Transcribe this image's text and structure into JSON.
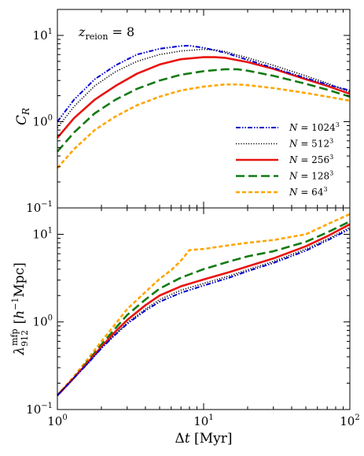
{
  "chart_data": [
    {
      "type": "line",
      "panel": "top",
      "annotation": "z_reion = 8",
      "ylabel": "C_R",
      "xscale": "log",
      "yscale": "log",
      "xlim": [
        1,
        100
      ],
      "ylim": [
        0.1,
        20
      ],
      "xticklabels": [],
      "yticks": [
        {
          "value": 0.1,
          "label": "10^-1"
        },
        {
          "value": 1,
          "label": "10^0"
        },
        {
          "value": 10,
          "label": "10^1"
        }
      ],
      "legend_position": "lower-right",
      "series": [
        {
          "name": "N = 1024^3",
          "color": "#0000cc",
          "style": "dashdotdot",
          "x": [
            1,
            1.3,
            1.8,
            2.5,
            3.5,
            5,
            7,
            8,
            10,
            14,
            20,
            30,
            50,
            70,
            100
          ],
          "y": [
            1.0,
            1.8,
            3.1,
            4.5,
            6.0,
            7.0,
            7.55,
            7.6,
            7.2,
            6.3,
            5.2,
            4.2,
            3.2,
            2.7,
            2.3
          ]
        },
        {
          "name": "N = 512^3",
          "color": "#000000",
          "style": "dotted",
          "x": [
            1,
            1.3,
            1.8,
            2.5,
            3.5,
            5,
            7,
            10,
            12,
            14,
            20,
            30,
            50,
            70,
            100
          ],
          "y": [
            0.85,
            1.5,
            2.6,
            3.8,
            5.0,
            6.0,
            6.6,
            6.9,
            6.8,
            6.5,
            5.5,
            4.5,
            3.4,
            2.8,
            2.2
          ]
        },
        {
          "name": "N = 256^3",
          "color": "#e8140f",
          "style": "solid",
          "x": [
            1,
            1.3,
            1.8,
            2.5,
            3.5,
            5,
            7,
            10,
            12,
            14,
            20,
            30,
            50,
            70,
            100
          ],
          "y": [
            0.65,
            1.1,
            1.8,
            2.6,
            3.6,
            4.6,
            5.3,
            5.6,
            5.6,
            5.5,
            4.9,
            4.1,
            3.1,
            2.6,
            2.1
          ]
        },
        {
          "name": "N = 128^3",
          "color": "#137a13",
          "style": "dashed",
          "x": [
            1,
            1.3,
            1.8,
            2.5,
            3.5,
            5,
            7,
            10,
            14,
            17,
            20,
            30,
            50,
            70,
            100
          ],
          "y": [
            0.45,
            0.75,
            1.25,
            1.8,
            2.4,
            3.0,
            3.5,
            3.85,
            4.05,
            4.05,
            3.9,
            3.4,
            2.75,
            2.35,
            1.95
          ]
        },
        {
          "name": "N = 64^3",
          "color": "#ffa500",
          "style": "short-dashed",
          "x": [
            1,
            1.3,
            1.8,
            2.5,
            3.5,
            5,
            7,
            10,
            14,
            17,
            20,
            30,
            50,
            70,
            100
          ],
          "y": [
            0.29,
            0.48,
            0.8,
            1.15,
            1.55,
            1.95,
            2.3,
            2.55,
            2.7,
            2.7,
            2.65,
            2.45,
            2.15,
            1.95,
            1.75
          ]
        }
      ]
    },
    {
      "type": "line",
      "panel": "bottom",
      "xlabel": "Δt [Myr]",
      "ylabel": "λ_912^mfp [h^-1 Mpc]",
      "xscale": "log",
      "yscale": "log",
      "xlim": [
        1,
        100
      ],
      "ylim": [
        0.1,
        20
      ],
      "xticks": [
        {
          "value": 1,
          "label": "10^0"
        },
        {
          "value": 10,
          "label": "10^1"
        },
        {
          "value": 100,
          "label": "10^2"
        }
      ],
      "yticks": [
        {
          "value": 0.1,
          "label": "10^-1"
        },
        {
          "value": 1,
          "label": "10^0"
        },
        {
          "value": 10,
          "label": "10^1"
        }
      ],
      "series": [
        {
          "name": "N = 1024^3",
          "color": "#0000cc",
          "style": "dashdotdot",
          "x": [
            1,
            1.3,
            1.6,
            2,
            2.5,
            3,
            4,
            5,
            7,
            10,
            15,
            20,
            30,
            50,
            70,
            100
          ],
          "y": [
            0.145,
            0.23,
            0.33,
            0.5,
            0.72,
            0.95,
            1.35,
            1.7,
            2.15,
            2.6,
            3.2,
            3.8,
            4.7,
            6.5,
            8.5,
            11.5
          ]
        },
        {
          "name": "N = 512^3",
          "color": "#000000",
          "style": "dotted",
          "x": [
            1,
            1.3,
            1.6,
            2,
            2.5,
            3,
            4,
            5,
            7,
            10,
            15,
            20,
            30,
            50,
            70,
            100
          ],
          "y": [
            0.145,
            0.23,
            0.33,
            0.5,
            0.73,
            0.98,
            1.4,
            1.8,
            2.3,
            2.75,
            3.35,
            3.95,
            4.9,
            6.8,
            8.8,
            12.0
          ]
        },
        {
          "name": "N = 256^3",
          "color": "#e8140f",
          "style": "solid",
          "x": [
            1,
            1.3,
            1.6,
            2,
            2.5,
            3,
            4,
            5,
            7,
            10,
            15,
            20,
            30,
            50,
            70,
            100
          ],
          "y": [
            0.145,
            0.23,
            0.34,
            0.52,
            0.78,
            1.05,
            1.55,
            2.0,
            2.55,
            3.05,
            3.7,
            4.3,
            5.3,
            7.3,
            9.5,
            13.0
          ]
        },
        {
          "name": "N = 128^3",
          "color": "#137a13",
          "style": "dashed",
          "x": [
            1,
            1.3,
            1.6,
            2,
            2.5,
            3,
            4,
            5,
            7,
            10,
            15,
            20,
            30,
            50,
            70,
            100
          ],
          "y": [
            0.145,
            0.23,
            0.35,
            0.55,
            0.85,
            1.2,
            1.8,
            2.4,
            3.2,
            4.0,
            4.9,
            5.6,
            6.4,
            8.2,
            10.5,
            14.0
          ]
        },
        {
          "name": "N = 64^3",
          "color": "#ffa500",
          "style": "short-dashed",
          "x": [
            1,
            1.3,
            1.6,
            2,
            2.5,
            3,
            4,
            5,
            6,
            7,
            8,
            10,
            15,
            20,
            30,
            50,
            70,
            100
          ],
          "y": [
            0.145,
            0.24,
            0.37,
            0.6,
            0.95,
            1.4,
            2.2,
            3.1,
            3.9,
            5.0,
            6.6,
            6.8,
            7.5,
            8.0,
            8.6,
            10.0,
            13.0,
            17.0
          ]
        }
      ]
    }
  ]
}
